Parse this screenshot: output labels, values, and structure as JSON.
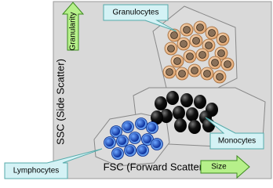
{
  "y_axis": {
    "label": "SSC (Side Scatter)",
    "arrow_label": "Granularity"
  },
  "x_axis": {
    "label": "FSC (Forward Scatter)",
    "arrow_label": "Size"
  },
  "populations": [
    {
      "label": "Granulocytes"
    },
    {
      "label": "Monocytes"
    },
    {
      "label": "Lymphocytes"
    }
  ]
}
